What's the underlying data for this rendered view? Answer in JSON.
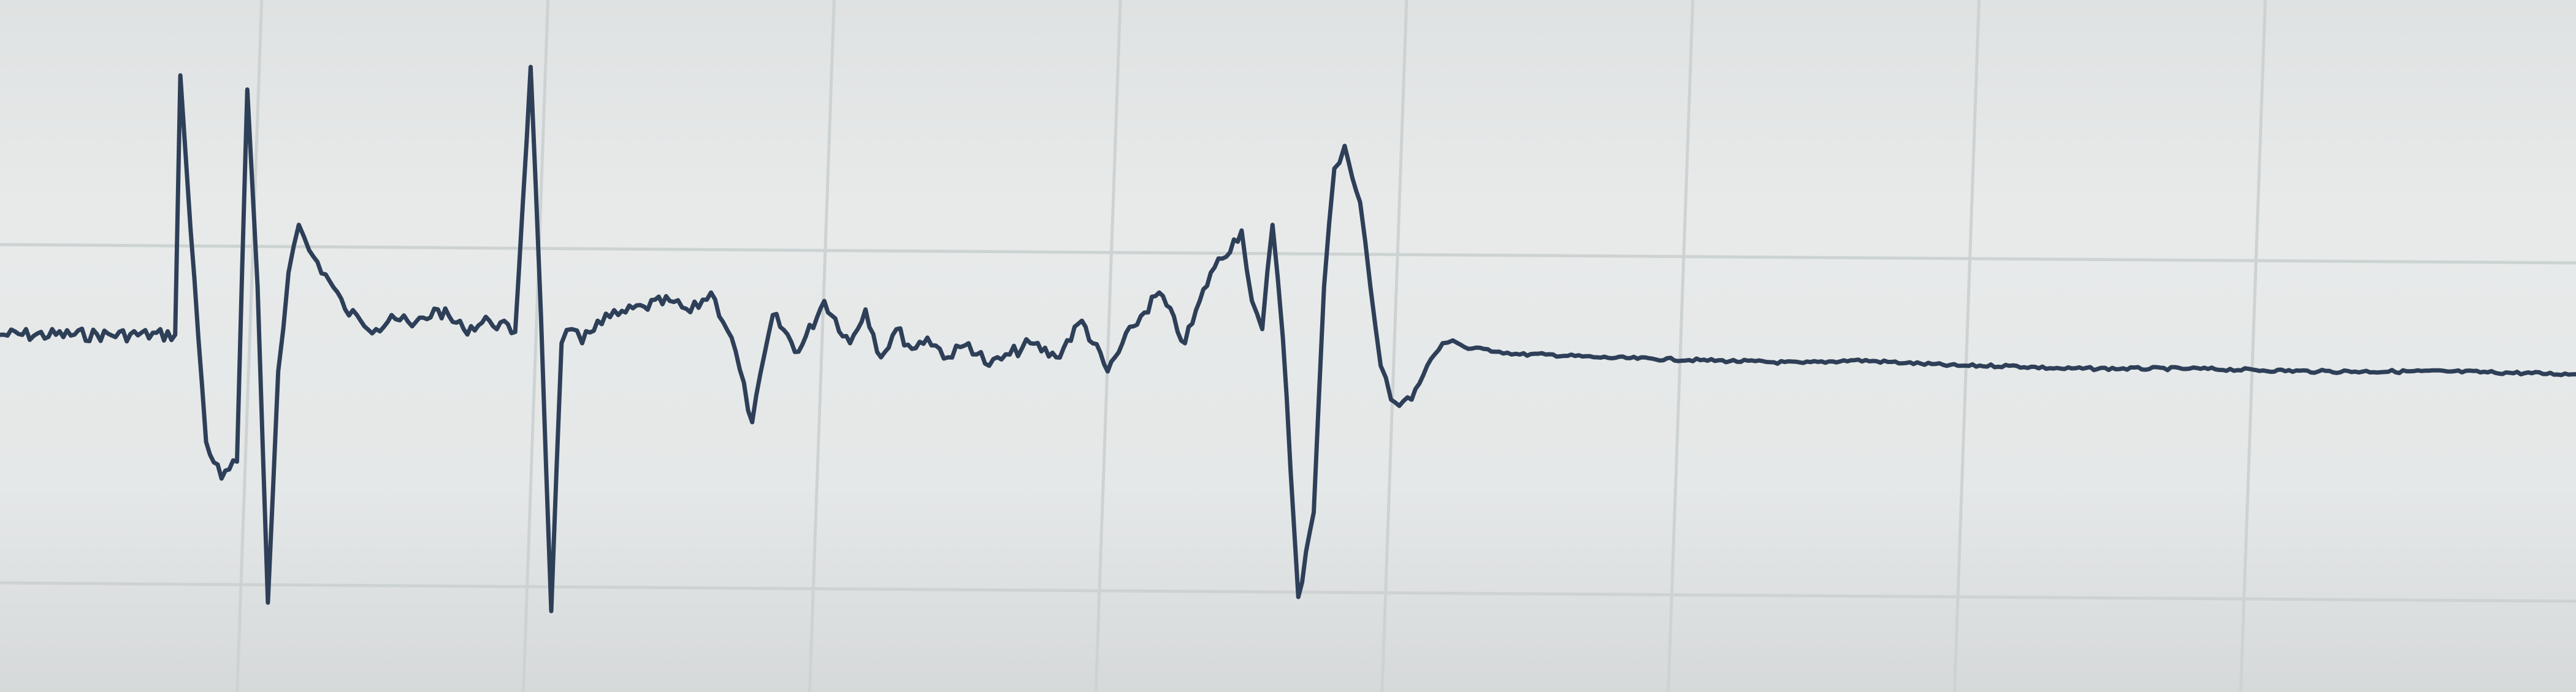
{
  "chart_data": {
    "type": "line",
    "title": "",
    "xlabel": "",
    "ylabel": "",
    "grid": true,
    "x_gridlines": 8,
    "y_gridlines": 2,
    "xlim": [
      0,
      1000
    ],
    "ylim": [
      -100,
      100
    ],
    "colors": {
      "trace": "#2e3f58",
      "grid": "#cdd2d3",
      "background": "#e6e9e9"
    },
    "series": [
      {
        "x": [
          0,
          68,
          70,
          74,
          80,
          86,
          92,
          96,
          100,
          104,
          108,
          112,
          116,
          120,
          128,
          134,
          140,
          146,
          152,
          160,
          170,
          180,
          190,
          200,
          206,
          210,
          214,
          218,
          222,
          226,
          232,
          240,
          250,
          260,
          268,
          276,
          284,
          292,
          300,
          310,
          320,
          330,
          336,
          342,
          348,
          354,
          360,
          368,
          376,
          384,
          392,
          400,
          410,
          420,
          430,
          440,
          450,
          460,
          470,
          482,
          486,
          490,
          494,
          498,
          504,
          510,
          514,
          518,
          522,
          528,
          532,
          536,
          540,
          548,
          554,
          560,
          564,
          570,
          576,
          582,
          590,
          600,
          620,
          660,
          700,
          720,
          740,
          760,
          780,
          800,
          850,
          900,
          950,
          1000
        ],
        "y": [
          3,
          3,
          95,
          40,
          -35,
          -48,
          -42,
          90,
          20,
          -92,
          -10,
          25,
          42,
          33,
          22,
          12,
          8,
          5,
          10,
          6,
          12,
          5,
          8,
          4,
          98,
          10,
          -95,
          0,
          5,
          0,
          8,
          10,
          13,
          15,
          11,
          18,
          2,
          -28,
          10,
          -3,
          15,
          0,
          12,
          -5,
          5,
          -2,
          2,
          -5,
          0,
          -8,
          -4,
          0,
          -5,
          8,
          -10,
          6,
          18,
          0,
          25,
          40,
          15,
          5,
          42,
          2,
          -90,
          -60,
          20,
          62,
          70,
          50,
          20,
          -8,
          -20,
          -20,
          -8,
          0,
          1,
          -2,
          -2,
          -3,
          -4,
          -4,
          -5,
          -6,
          -7,
          -6,
          -7,
          -8,
          -8,
          -9,
          -9,
          -10,
          -10,
          -11
        ]
      }
    ]
  }
}
